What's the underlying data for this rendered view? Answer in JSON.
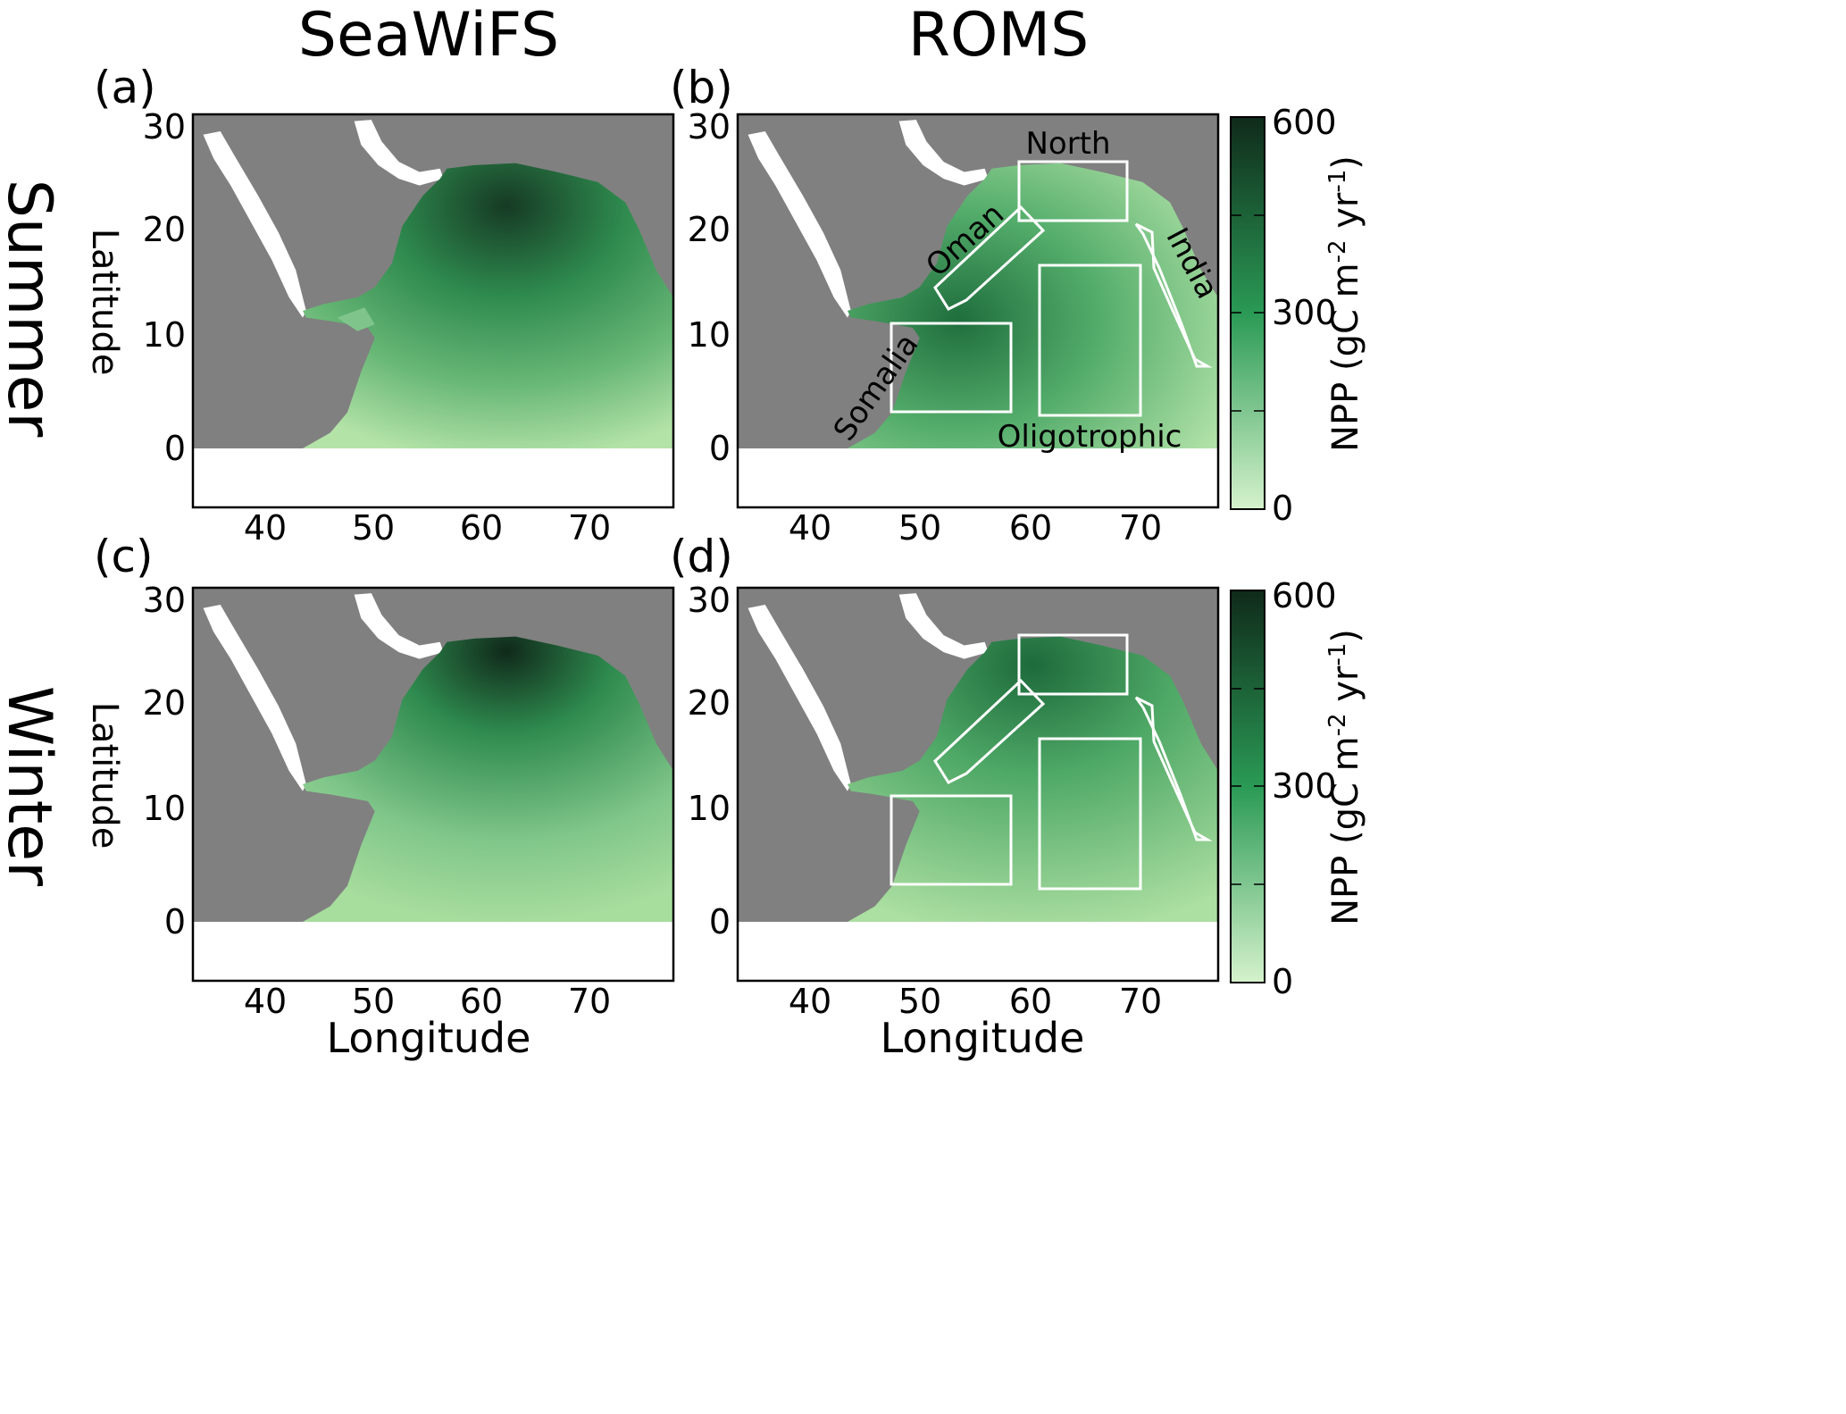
{
  "figure": {
    "column_titles": [
      "SeaWiFS",
      "ROMS"
    ],
    "row_titles": [
      "Summer",
      "Winter"
    ],
    "panel_labels": [
      "(a)",
      "(b)",
      "(c)",
      "(d)"
    ],
    "y_label": "Latitude",
    "x_label": "Longitude",
    "x_ticks": [
      "40",
      "50",
      "60",
      "70"
    ],
    "y_ticks": [
      "30",
      "20",
      "10",
      "0"
    ]
  },
  "regions": {
    "north": "North",
    "oman": "Oman",
    "india": "India",
    "somalia": "Somalia",
    "oligotrophic": "Oligotrophic"
  },
  "colorbar": {
    "label": "NPP (gC m-2 yr-1)",
    "label_main": "NPP (gC m",
    "sup1": "-2",
    "label_mid": " yr",
    "sup2": "-1",
    "label_end": ")",
    "ticks": [
      "600",
      "300",
      "0"
    ],
    "range": [
      0,
      600
    ],
    "color_low": "#d5f2cc",
    "color_mid": "#2a9a55",
    "color_high": "#0f2a1a"
  },
  "colors": {
    "land": "#808080",
    "no_data": "#ffffff",
    "box_outline": "#ffffff"
  }
}
